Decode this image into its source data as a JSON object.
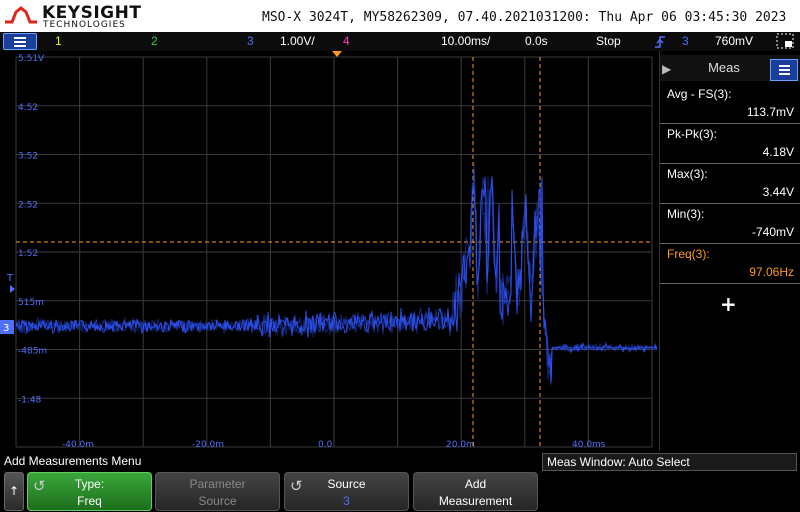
{
  "header": {
    "brand": "KEYSIGHT",
    "brand_sub": "TECHNOLOGIES",
    "device_info": "MSO-X 3024T, MY58262309, 07.40.2021031200: Thu Apr 06 03:45:30 2023"
  },
  "status": {
    "ch1": "1",
    "ch2": "2",
    "ch3": "3",
    "ch3_scale": "1.00V/",
    "ch4": "4",
    "timebase": "10.00ms/",
    "delay": "0.0s",
    "run_state": "Stop",
    "trigger_icon": "rising-edge-icon",
    "trigger_source": "3",
    "trigger_level": "760mV",
    "colors": {
      "ch1": "#f5f500",
      "ch2": "#35d04a",
      "ch3": "#4f6fff",
      "ch4": "#ff3cbe",
      "cursor": "#ff9a1a"
    }
  },
  "grid": {
    "y_labels": [
      "5.51V",
      "4.52",
      "3.52",
      "2.52",
      "1.52",
      "515m",
      "-485m",
      "-1.48"
    ],
    "x_labels": [
      "-40.0m",
      "-20.0m",
      "0.0",
      "20.0m",
      "40.0ms"
    ],
    "trigger_marker": "T",
    "ground_marker": "3"
  },
  "measurements": {
    "title": "Meas",
    "items": [
      {
        "label": "Avg - FS(3):",
        "value": "113.7mV",
        "active": false
      },
      {
        "label": "Pk-Pk(3):",
        "value": "4.18V",
        "active": false
      },
      {
        "label": "Max(3):",
        "value": "3.44V",
        "active": false
      },
      {
        "label": "Min(3):",
        "value": "-740mV",
        "active": false
      },
      {
        "label": "Freq(3):",
        "value": "97.06Hz",
        "active": true
      }
    ],
    "add_symbol": "+"
  },
  "softkeys": {
    "menu_title": "Add Measurements Menu",
    "meas_window": "Meas Window: Auto Select",
    "back": "↑",
    "type_l1": "Type:",
    "type_l2": "Freq",
    "param_l1": "Parameter",
    "param_l2": "Source",
    "source_l1": "Source",
    "source_l2": "3",
    "add_l1": "Add",
    "add_l2": "Measurement"
  }
}
